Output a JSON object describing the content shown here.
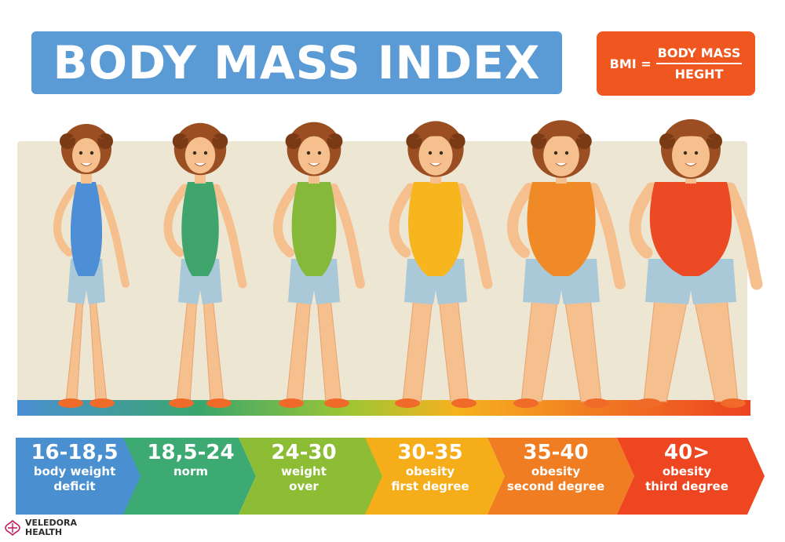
{
  "title": "BODY MASS INDEX",
  "formula": {
    "lhs": "BMI =",
    "numerator": "BODY MASS",
    "denominator": "HEGHT"
  },
  "categories": [
    {
      "range": "16-18,5",
      "label_line1": "body weight",
      "label_line2": "deficit",
      "color": "#4a90d0",
      "figure_color": "#4d8fd6"
    },
    {
      "range": "18,5-24",
      "label_line1": "norm",
      "label_line2": "",
      "color": "#3daa73",
      "figure_color": "#3fa56c"
    },
    {
      "range": "24-30",
      "label_line1": "weight",
      "label_line2": "over",
      "color": "#8cbd35",
      "figure_color": "#86b83a"
    },
    {
      "range": "30-35",
      "label_line1": "obesity",
      "label_line2": "first degree",
      "color": "#f6ad1a",
      "figure_color": "#f7b51e"
    },
    {
      "range": "35-40",
      "label_line1": "obesity",
      "label_line2": "second degree",
      "color": "#f07d22",
      "figure_color": "#f08a26"
    },
    {
      "range": "40>",
      "label_line1": "obesity",
      "label_line2": "third degree",
      "color": "#ed4620",
      "figure_color": "#ec4a24"
    }
  ],
  "logo": {
    "line1": "VELEDORA",
    "line2": "HEALTH"
  },
  "colors": {
    "title_bg": "#5b9bd5",
    "formula_bg": "#f0561f",
    "panel_bg": "#ede6d2"
  }
}
